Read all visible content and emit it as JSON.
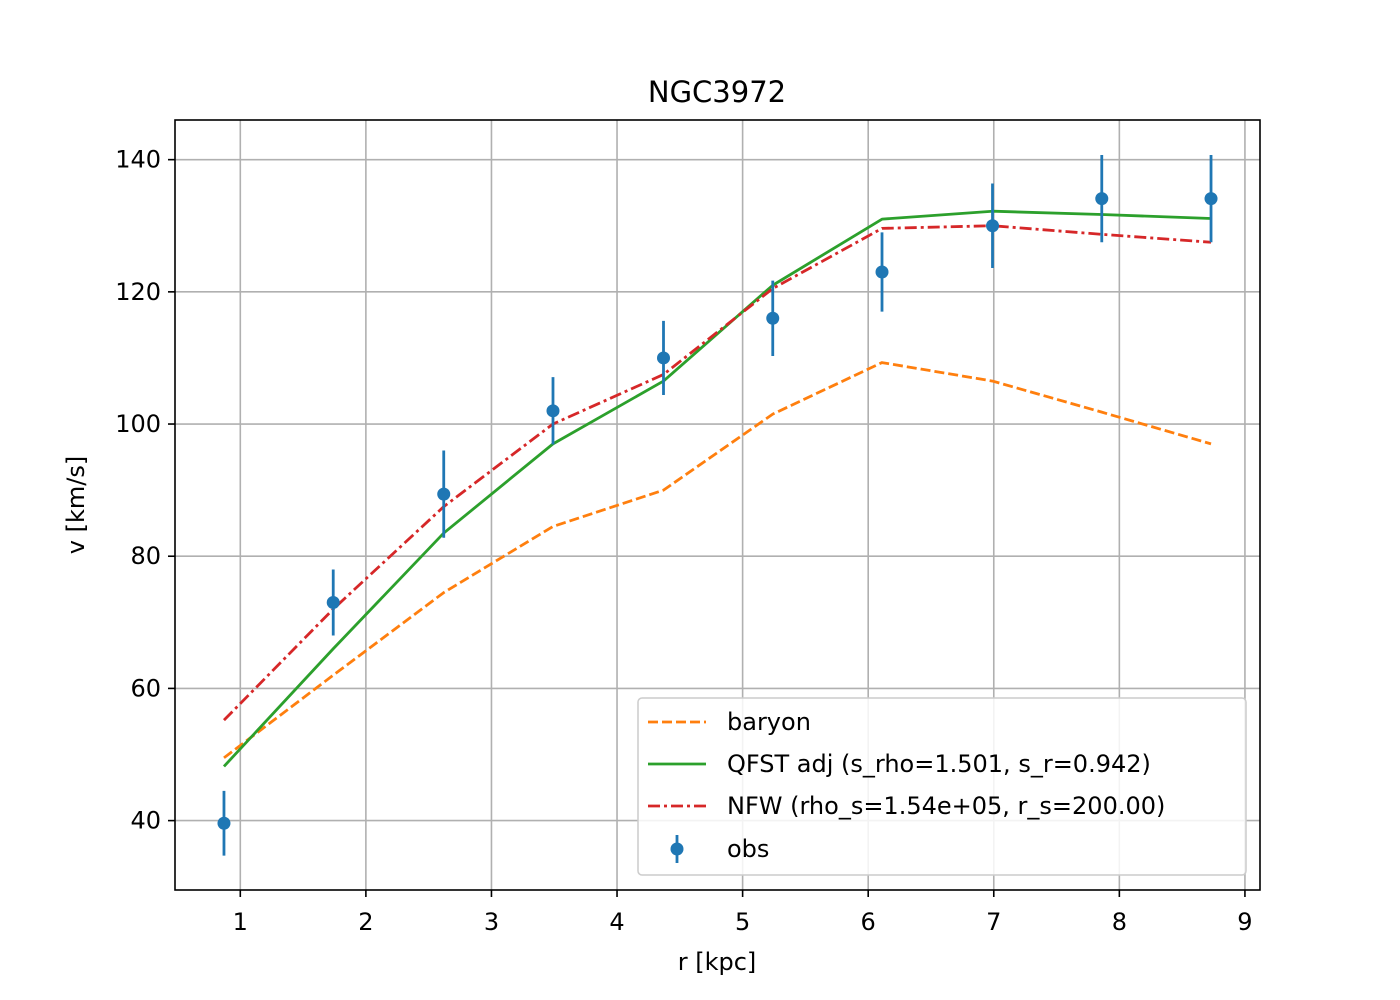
{
  "chart_data": {
    "type": "line",
    "title": "NGC3972",
    "xlabel": "r [kpc]",
    "ylabel": "v [km/s]",
    "xlim": [
      0.48,
      9.12
    ],
    "ylim": [
      29.5,
      146
    ],
    "x_ticks": [
      1,
      2,
      3,
      4,
      5,
      6,
      7,
      8,
      9
    ],
    "y_ticks": [
      40,
      60,
      80,
      100,
      120,
      140
    ],
    "grid": true,
    "legend_position": "lower right",
    "x": [
      0.87,
      1.74,
      2.62,
      3.49,
      4.37,
      5.24,
      6.11,
      6.99,
      7.86,
      8.73
    ],
    "series": [
      {
        "name": "baryon",
        "style": "dashed",
        "color": "#ff7f0e",
        "values": [
          49.5,
          62.0,
          74.5,
          84.5,
          90.0,
          101.5,
          109.3,
          106.5,
          101.8,
          97.0
        ]
      },
      {
        "name": "QFST adj (s_rho=1.501, s_r=0.942)",
        "style": "solid",
        "color": "#2ca02c",
        "values": [
          48.2,
          66.0,
          83.5,
          97.0,
          106.5,
          121.0,
          131.0,
          132.2,
          131.7,
          131.1
        ]
      },
      {
        "name": "NFW (rho_s=1.54e+05, r_s=200.00)",
        "style": "dashdot",
        "color": "#d62728",
        "values": [
          55.2,
          72.0,
          87.5,
          100.0,
          107.5,
          120.5,
          129.6,
          130.0,
          128.7,
          127.5
        ]
      },
      {
        "name": "obs",
        "style": "errorbar",
        "color": "#1f77b4",
        "values": [
          39.6,
          73.0,
          89.4,
          102.0,
          110.0,
          116.0,
          123.0,
          130.0,
          134.1,
          134.1
        ],
        "errors": [
          4.9,
          5.0,
          6.6,
          5.1,
          5.6,
          5.7,
          6.0,
          6.4,
          6.6,
          6.6
        ]
      }
    ]
  }
}
